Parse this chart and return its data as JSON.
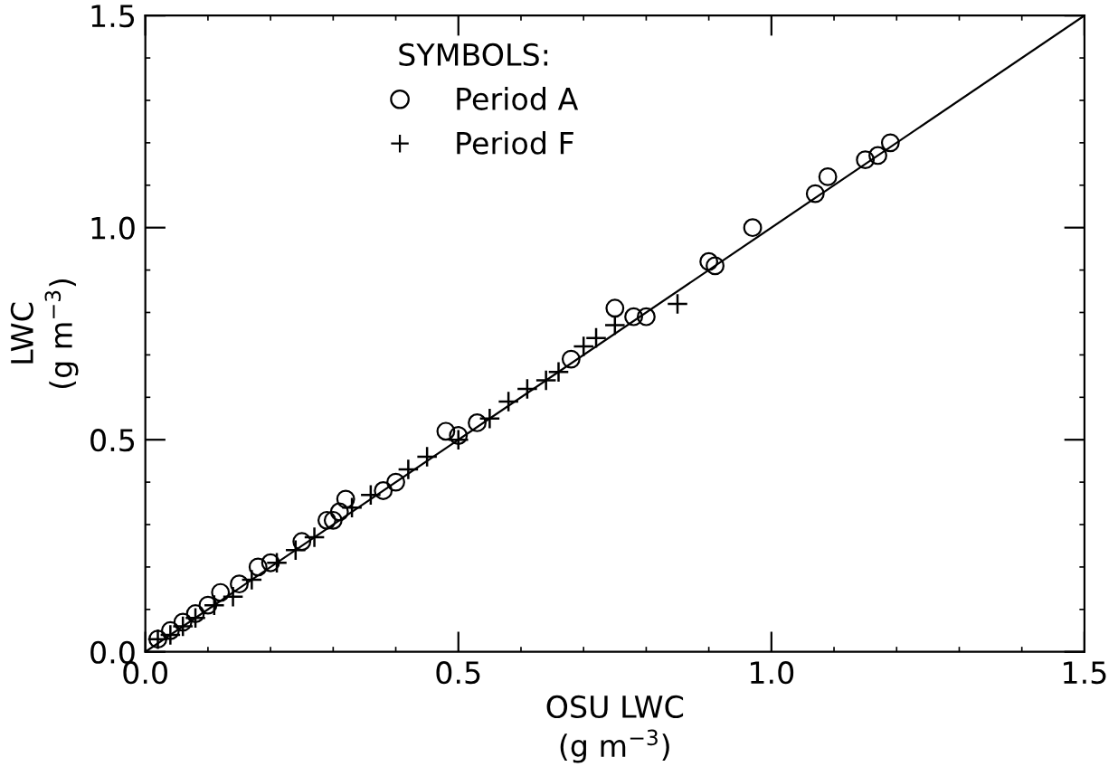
{
  "chart_data": {
    "type": "scatter",
    "xlabel": "OSU LWC\n(g m$^{−3}$)",
    "ylabel": "LWC\n(g m$^{−3}$)",
    "legend_title": "SYMBOLS:",
    "legend": "top",
    "xlim": [
      0,
      1.5
    ],
    "ylim": [
      0,
      1.5
    ],
    "xticks": [
      {
        "value": 0,
        "label": "0.0"
      },
      {
        "value": 0.5,
        "label": "0.5"
      },
      {
        "value": 1,
        "label": "1.0"
      },
      {
        "value": 1.5,
        "label": "1.5"
      }
    ],
    "yticks": [
      {
        "value": 0,
        "label": "0.0"
      },
      {
        "value": 0.5,
        "label": "0.5"
      },
      {
        "value": 1,
        "label": "1.0"
      },
      {
        "value": 1.5,
        "label": "1.5"
      }
    ],
    "series": [
      {
        "name": "Period A",
        "color": "#000000",
        "marker": "circle",
        "x": [
          0.02,
          0.04,
          0.06,
          0.08,
          0.1,
          0.12,
          0.15,
          0.18,
          0.2,
          0.25,
          0.29,
          0.3,
          0.31,
          0.32,
          0.38,
          0.4,
          0.48,
          0.5,
          0.53,
          0.68,
          0.75,
          0.78,
          0.8,
          0.9,
          0.91,
          0.97,
          1.07,
          1.09,
          1.15,
          1.17,
          1.19
        ],
        "values": [
          0.03,
          0.05,
          0.07,
          0.09,
          0.11,
          0.14,
          0.16,
          0.2,
          0.21,
          0.26,
          0.31,
          0.31,
          0.33,
          0.36,
          0.38,
          0.4,
          0.52,
          0.51,
          0.54,
          0.69,
          0.81,
          0.79,
          0.79,
          0.92,
          0.91,
          1.0,
          1.08,
          1.12,
          1.16,
          1.17,
          1.2
        ]
      },
      {
        "name": "Period F",
        "color": "#000000",
        "marker": "cross",
        "x": [
          0.02,
          0.04,
          0.06,
          0.08,
          0.11,
          0.14,
          0.17,
          0.21,
          0.24,
          0.27,
          0.33,
          0.36,
          0.42,
          0.45,
          0.5,
          0.55,
          0.58,
          0.61,
          0.64,
          0.66,
          0.7,
          0.72,
          0.75,
          0.85
        ],
        "values": [
          0.03,
          0.04,
          0.06,
          0.08,
          0.11,
          0.13,
          0.17,
          0.21,
          0.24,
          0.27,
          0.34,
          0.37,
          0.43,
          0.46,
          0.5,
          0.55,
          0.59,
          0.62,
          0.64,
          0.66,
          0.72,
          0.74,
          0.77,
          0.82
        ]
      },
      {
        "type": "line",
        "color": "#000000",
        "x": [
          0,
          1.5
        ],
        "values": [
          0,
          1.5
        ]
      }
    ]
  }
}
